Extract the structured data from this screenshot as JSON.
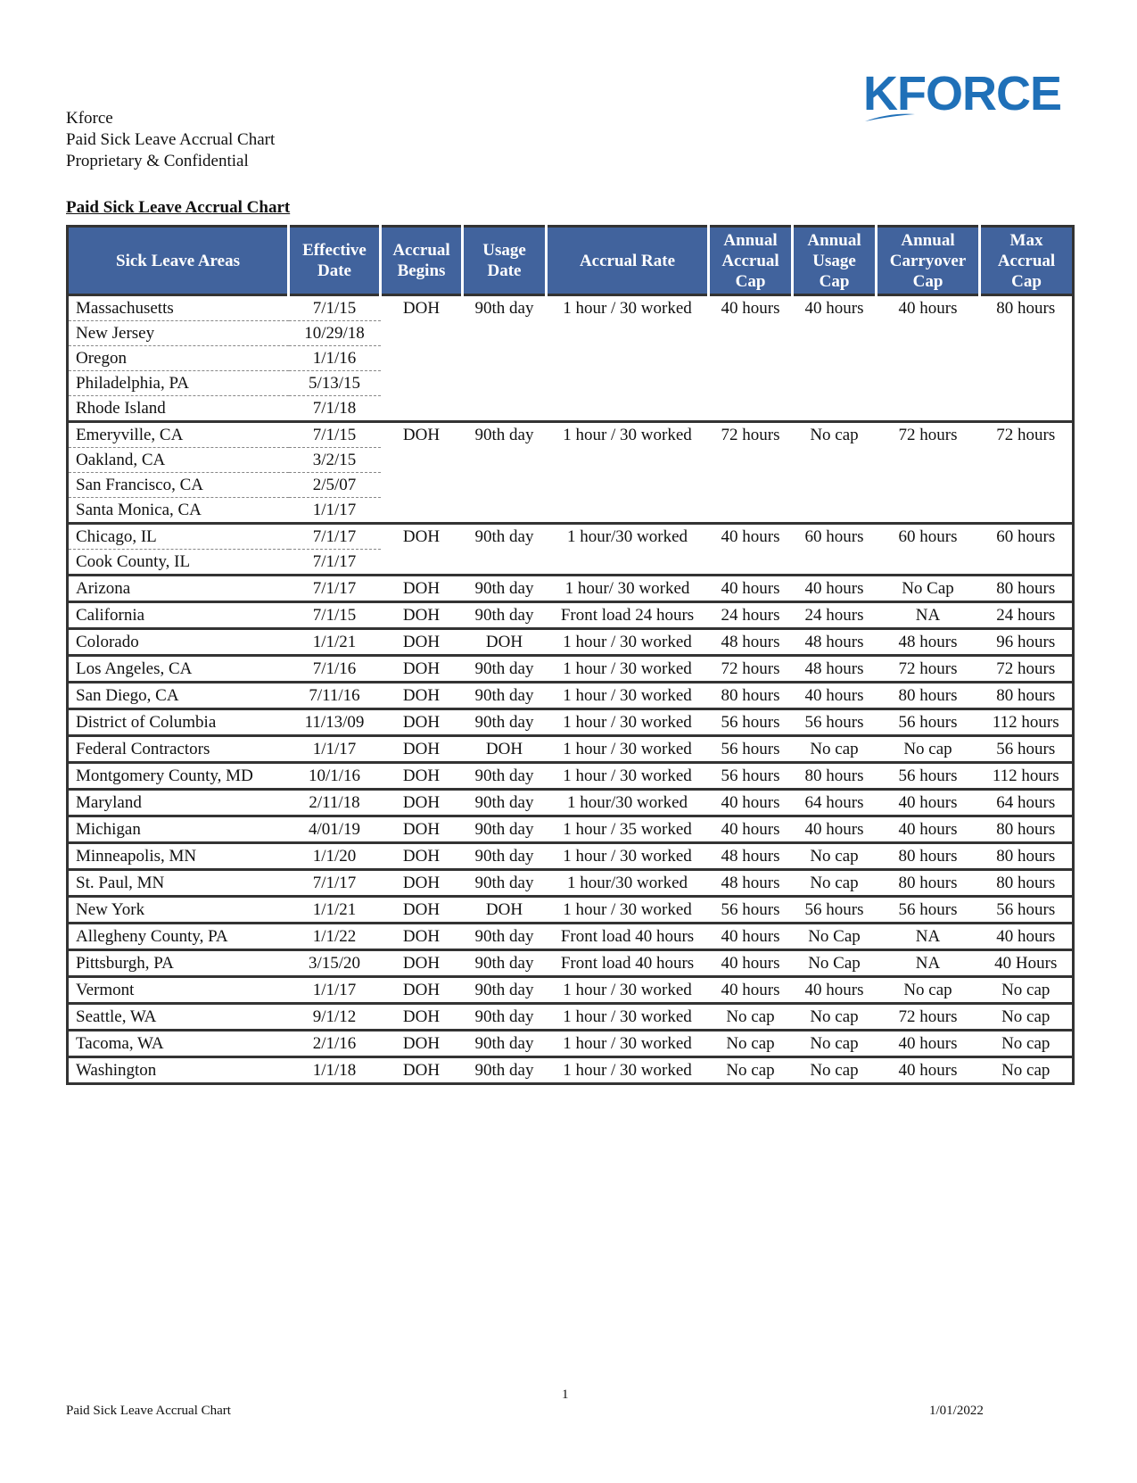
{
  "header": {
    "company": "Kforce",
    "title": "Paid Sick Leave Accrual Chart",
    "note": "Proprietary & Confidential",
    "logo": "KFORCE"
  },
  "section_title": "Paid Sick Leave Accrual Chart",
  "table": {
    "columns": [
      "Sick Leave Areas",
      "Effective Date",
      "Accrual Begins",
      "Usage Date",
      "Accrual Rate",
      "Annual Accrual Cap",
      "Annual Usage Cap",
      "Annual Carryover Cap",
      "Max Accrual Cap"
    ],
    "groups": [
      {
        "areas": [
          [
            "Massachusetts",
            "7/1/15"
          ],
          [
            "New Jersey",
            "10/29/18"
          ],
          [
            "Oregon",
            "1/1/16"
          ],
          [
            "Philadelphia, PA",
            "5/13/15"
          ],
          [
            "Rhode Island",
            "7/1/18"
          ]
        ],
        "values": [
          "DOH",
          "90th day",
          "1 hour / 30 worked",
          "40 hours",
          "40 hours",
          "40 hours",
          "80 hours"
        ]
      },
      {
        "areas": [
          [
            "Emeryville, CA",
            "7/1/15"
          ],
          [
            "Oakland, CA",
            "3/2/15"
          ],
          [
            "San Francisco, CA",
            "2/5/07"
          ],
          [
            "Santa Monica, CA",
            "1/1/17"
          ]
        ],
        "values": [
          "DOH",
          "90th day",
          "1 hour / 30 worked",
          "72 hours",
          "No cap",
          "72 hours",
          "72 hours"
        ]
      },
      {
        "areas": [
          [
            "Chicago, IL",
            "7/1/17"
          ],
          [
            "Cook County, IL",
            "7/1/17"
          ]
        ],
        "values": [
          "DOH",
          "90th day",
          "1 hour/30 worked",
          "40 hours",
          "60 hours",
          "60 hours",
          "60 hours"
        ]
      },
      {
        "areas": [
          [
            "Arizona",
            "7/1/17"
          ]
        ],
        "values": [
          "DOH",
          "90th day",
          "1 hour/ 30 worked",
          "40 hours",
          "40 hours",
          "No Cap",
          "80 hours"
        ]
      },
      {
        "areas": [
          [
            "California",
            "7/1/15"
          ]
        ],
        "values": [
          "DOH",
          "90th day",
          "Front load 24 hours",
          "24 hours",
          "24 hours",
          "NA",
          "24 hours"
        ]
      },
      {
        "areas": [
          [
            "Colorado",
            "1/1/21"
          ]
        ],
        "values": [
          "DOH",
          "DOH",
          "1 hour / 30 worked",
          "48 hours",
          "48 hours",
          "48 hours",
          "96 hours"
        ]
      },
      {
        "areas": [
          [
            "Los Angeles, CA",
            "7/1/16"
          ]
        ],
        "values": [
          "DOH",
          "90th day",
          "1 hour / 30 worked",
          "72 hours",
          "48 hours",
          "72 hours",
          "72 hours"
        ]
      },
      {
        "areas": [
          [
            "San Diego, CA",
            "7/11/16"
          ]
        ],
        "values": [
          "DOH",
          "90th day",
          "1 hour / 30 worked",
          "80 hours",
          "40 hours",
          "80 hours",
          "80 hours"
        ]
      },
      {
        "areas": [
          [
            "District of Columbia",
            "11/13/09"
          ]
        ],
        "values": [
          "DOH",
          "90th day",
          "1 hour / 30 worked",
          "56 hours",
          "56 hours",
          "56 hours",
          "112 hours"
        ]
      },
      {
        "areas": [
          [
            "Federal Contractors",
            "1/1/17"
          ]
        ],
        "values": [
          "DOH",
          "DOH",
          "1 hour / 30 worked",
          "56 hours",
          "No cap",
          "No cap",
          "56 hours"
        ]
      },
      {
        "areas": [
          [
            "Montgomery County, MD",
            "10/1/16"
          ]
        ],
        "values": [
          "DOH",
          "90th day",
          "1 hour / 30 worked",
          "56 hours",
          "80 hours",
          "56 hours",
          "112 hours"
        ]
      },
      {
        "areas": [
          [
            "Maryland",
            "2/11/18"
          ]
        ],
        "values": [
          "DOH",
          "90th day",
          "1 hour/30 worked",
          "40 hours",
          "64 hours",
          "40 hours",
          "64 hours"
        ]
      },
      {
        "areas": [
          [
            "Michigan",
            "4/01/19"
          ]
        ],
        "values": [
          "DOH",
          "90th day",
          "1 hour / 35 worked",
          "40 hours",
          "40 hours",
          "40 hours",
          "80 hours"
        ]
      },
      {
        "areas": [
          [
            "Minneapolis, MN",
            "1/1/20"
          ]
        ],
        "values": [
          "DOH",
          "90th day",
          "1 hour / 30 worked",
          "48 hours",
          "No cap",
          "80 hours",
          "80 hours"
        ]
      },
      {
        "areas": [
          [
            "St. Paul, MN",
            "7/1/17"
          ]
        ],
        "values": [
          "DOH",
          "90th day",
          "1 hour/30 worked",
          "48 hours",
          "No cap",
          "80 hours",
          "80 hours"
        ]
      },
      {
        "areas": [
          [
            "New York",
            "1/1/21"
          ]
        ],
        "values": [
          "DOH",
          "DOH",
          "1 hour / 30 worked",
          "56 hours",
          "56 hours",
          "56 hours",
          "56 hours"
        ]
      },
      {
        "areas": [
          [
            "Allegheny County, PA",
            "1/1/22"
          ]
        ],
        "values": [
          "DOH",
          "90th day",
          "Front load 40 hours",
          "40 hours",
          "No Cap",
          "NA",
          "40 hours"
        ]
      },
      {
        "areas": [
          [
            "Pittsburgh, PA",
            "3/15/20"
          ]
        ],
        "values": [
          "DOH",
          "90th day",
          "Front load 40 hours",
          "40 hours",
          "No Cap",
          "NA",
          "40 Hours"
        ]
      },
      {
        "areas": [
          [
            "Vermont",
            "1/1/17"
          ]
        ],
        "values": [
          "DOH",
          "90th day",
          "1 hour / 30 worked",
          "40 hours",
          "40 hours",
          "No cap",
          "No cap"
        ]
      },
      {
        "areas": [
          [
            "Seattle, WA",
            "9/1/12"
          ]
        ],
        "values": [
          "DOH",
          "90th day",
          "1 hour / 30 worked",
          "No cap",
          "No cap",
          "72 hours",
          "No cap"
        ]
      },
      {
        "areas": [
          [
            "Tacoma, WA",
            "2/1/16"
          ]
        ],
        "values": [
          "DOH",
          "90th day",
          "1 hour / 30 worked",
          "No cap",
          "No cap",
          "40 hours",
          "No cap"
        ]
      },
      {
        "areas": [
          [
            "Washington",
            "1/1/18"
          ]
        ],
        "values": [
          "DOH",
          "90th day",
          "1 hour / 30 worked",
          "No cap",
          "No cap",
          "40 hours",
          "No cap"
        ]
      }
    ]
  },
  "footer": {
    "page": "1",
    "left": "Paid Sick Leave Accrual Chart",
    "right": "1/01/2022"
  }
}
